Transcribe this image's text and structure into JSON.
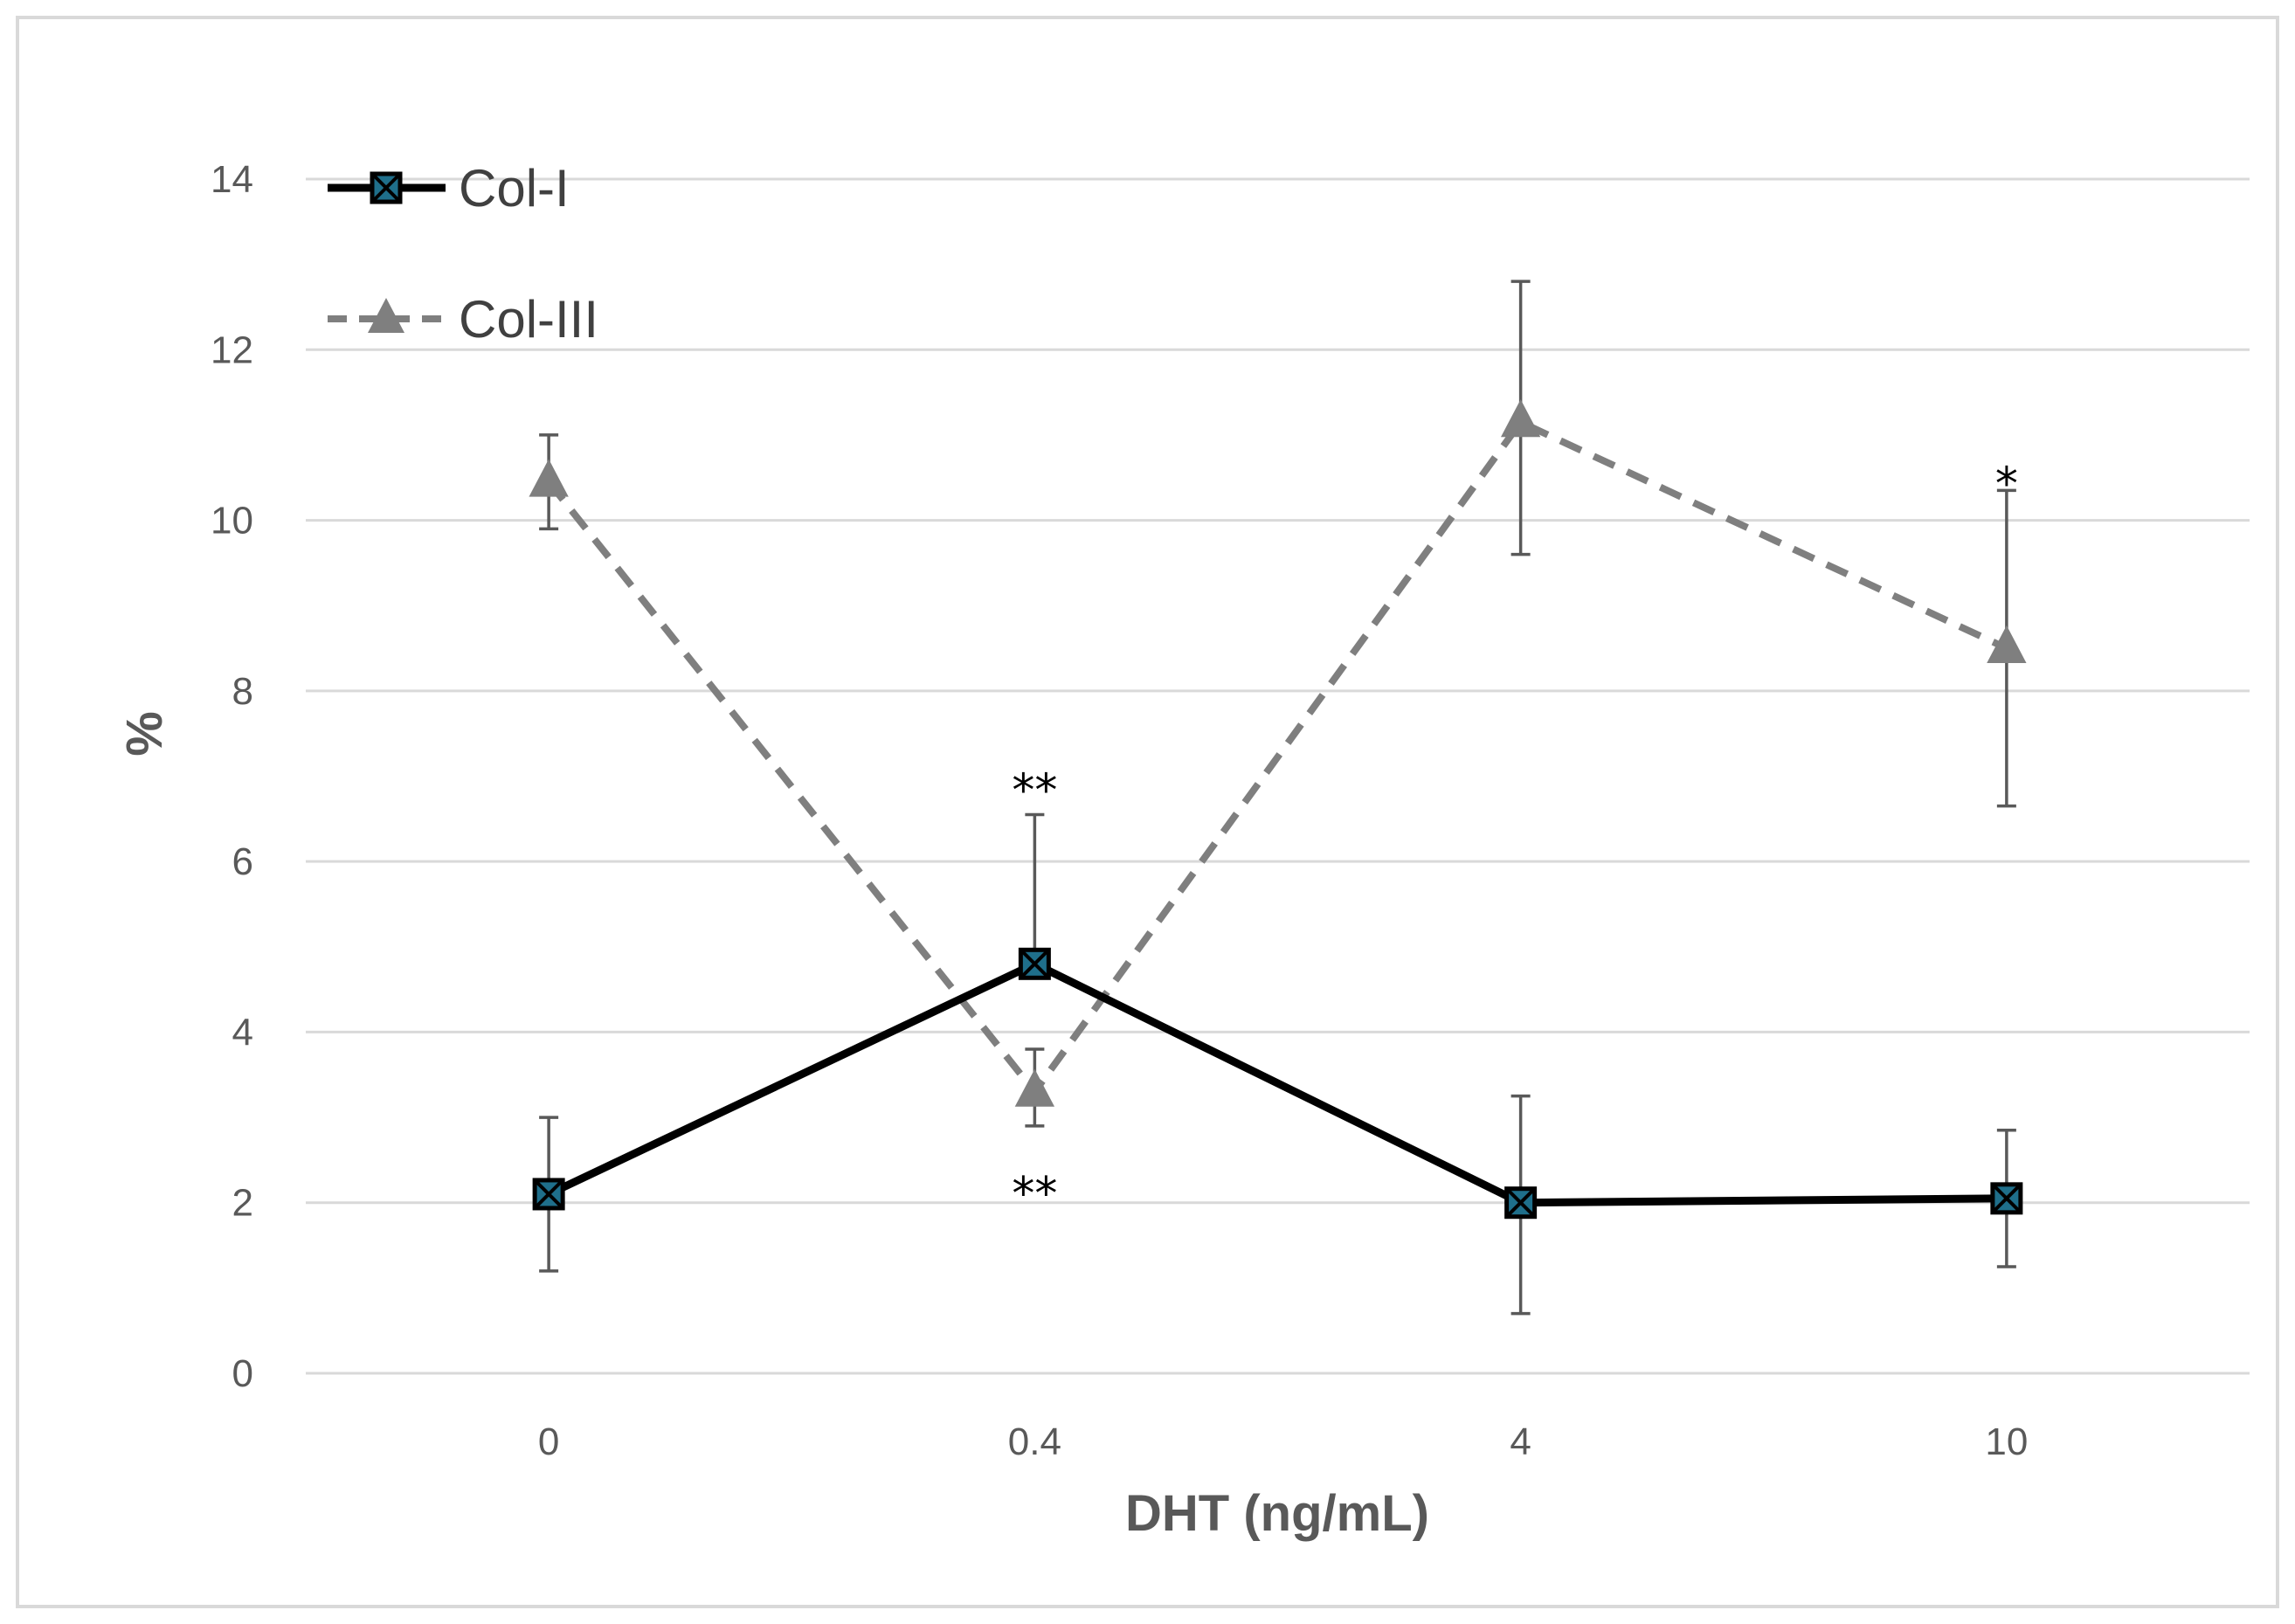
{
  "chart_data": {
    "type": "line",
    "title": "",
    "xlabel": "DHT (ng/mL)",
    "ylabel": "%",
    "categories": [
      "0",
      "0.4",
      "4",
      "10"
    ],
    "ylim": [
      0,
      14
    ],
    "yticks": [
      0,
      2,
      4,
      6,
      8,
      10,
      12,
      14
    ],
    "grid": true,
    "legend_position": "top-left",
    "series": [
      {
        "name": "Col-I",
        "style": "solid",
        "marker": "square-x",
        "color": "#000000",
        "marker_fill": "#1f6f8b",
        "values": [
          2.1,
          4.8,
          2.0,
          2.05
        ],
        "err_low": [
          1.2,
          4.8,
          0.7,
          1.25
        ],
        "err_high": [
          3.0,
          6.55,
          3.25,
          2.85
        ],
        "significance": [
          "",
          "**",
          "",
          ""
        ]
      },
      {
        "name": "Col-III",
        "style": "dashed",
        "marker": "triangle",
        "color": "#7f7f7f",
        "marker_fill": "#7f7f7f",
        "values": [
          10.45,
          3.3,
          11.15,
          8.5
        ],
        "err_low": [
          9.9,
          2.9,
          9.6,
          6.65
        ],
        "err_high": [
          11.0,
          3.8,
          12.8,
          10.35
        ],
        "significance": [
          "",
          "**",
          "",
          "*"
        ]
      }
    ]
  }
}
